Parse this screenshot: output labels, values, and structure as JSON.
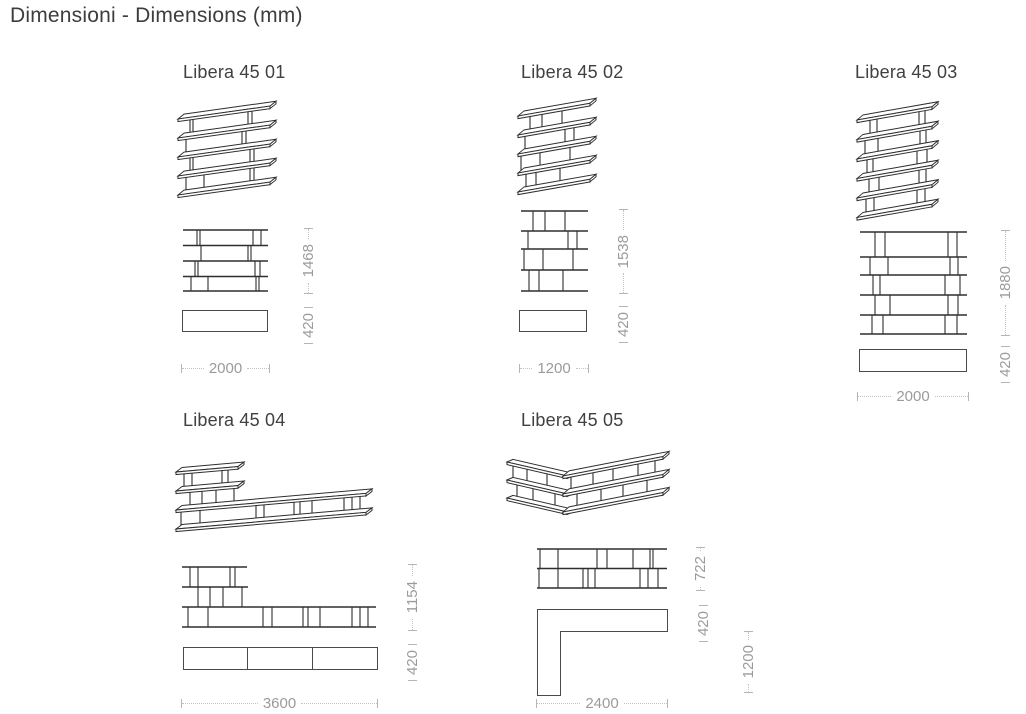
{
  "page": {
    "title": "Dimensioni - Dimensions (mm)"
  },
  "models": [
    {
      "name": "Libera 45 01",
      "height_mm": "1468",
      "depth_mm": "420",
      "width_mm": "2000"
    },
    {
      "name": "Libera 45 02",
      "height_mm": "1538",
      "depth_mm": "420",
      "width_mm": "1200"
    },
    {
      "name": "Libera 45 03",
      "height_mm": "1880",
      "depth_mm": "420",
      "width_mm": "2000"
    },
    {
      "name": "Libera 45 04",
      "height_mm": "1154",
      "depth_mm": "420",
      "width_mm": "3600"
    },
    {
      "name": "Libera 45 05",
      "height_mm": "722",
      "depth_mm": "420",
      "return_depth_mm": "1200",
      "width_mm": "2400"
    }
  ]
}
